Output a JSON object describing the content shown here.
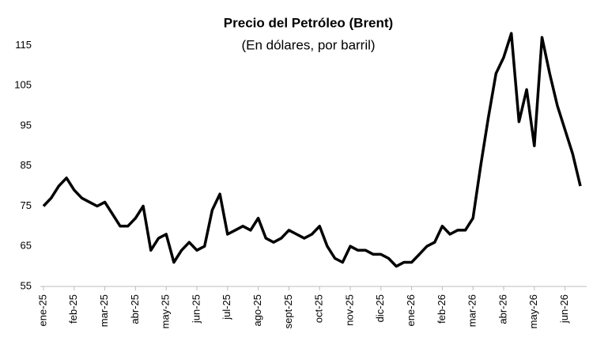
{
  "chart_data": {
    "type": "line",
    "title": "Precio del Petróleo (Brent)",
    "subtitle": "(En dólares, por barril)",
    "categories": [
      "ene-25",
      null,
      null,
      null,
      "feb-25",
      null,
      null,
      null,
      "mar-25",
      null,
      null,
      null,
      "abr-25",
      null,
      null,
      null,
      "may-25",
      null,
      null,
      null,
      "jun-25",
      null,
      null,
      null,
      "jul-25",
      null,
      null,
      null,
      "ago-25",
      null,
      null,
      null,
      "sept-25",
      null,
      null,
      null,
      "oct-25",
      null,
      null,
      null,
      "nov-25",
      null,
      null,
      null,
      "dic-25",
      null,
      null,
      null,
      "ene-26",
      null,
      null,
      null,
      "feb-26",
      null,
      null,
      null,
      "mar-26",
      null,
      null,
      null,
      "abr-26",
      null,
      null,
      null,
      "may-26",
      null,
      null,
      null,
      "jun-26",
      null,
      null
    ],
    "values": [
      75,
      77,
      80,
      82,
      79,
      77,
      76,
      75,
      76,
      73,
      70,
      70,
      72,
      75,
      64,
      67,
      68,
      61,
      64,
      66,
      64,
      65,
      74,
      78,
      68,
      69,
      70,
      69,
      72,
      67,
      66,
      67,
      69,
      68,
      67,
      68,
      70,
      65,
      62,
      61,
      65,
      64,
      64,
      63,
      63,
      62,
      60,
      61,
      61,
      63,
      65,
      66,
      70,
      68,
      69,
      69,
      72,
      85,
      97,
      108,
      112,
      118,
      96,
      104,
      90,
      117,
      108,
      100,
      94,
      88,
      80
    ],
    "color": "#000000",
    "ylim": [
      55,
      120
    ],
    "yticks": [
      55,
      65,
      75,
      85,
      95,
      105,
      115
    ],
    "grid": false
  }
}
